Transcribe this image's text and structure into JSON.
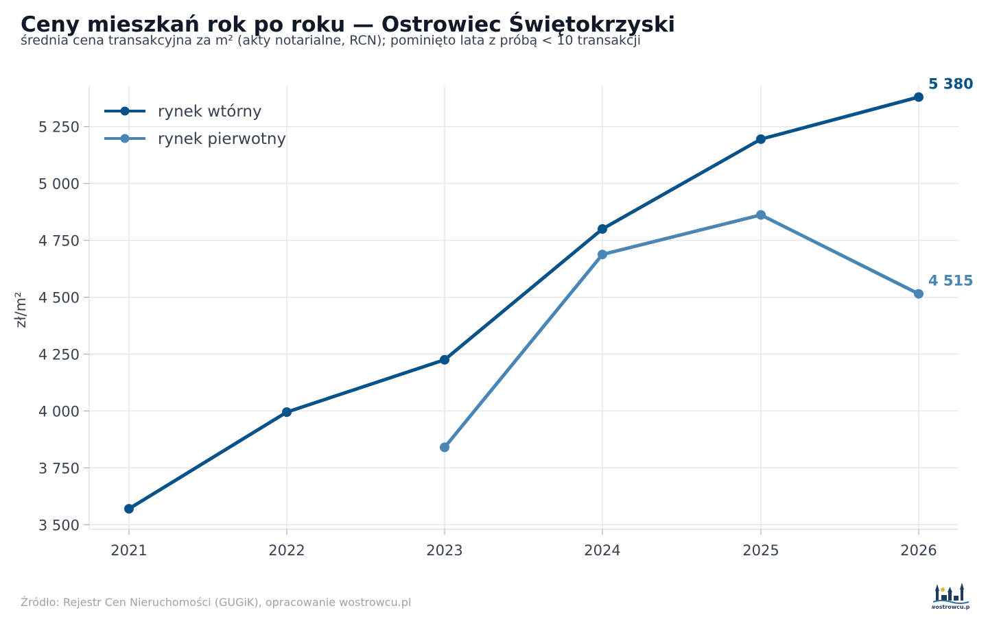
{
  "header": {
    "title": "Ceny mieszkań rok po roku — Ostrowiec Świętokrzyski",
    "subtitle": "średnia cena transakcyjna za m² (akty notarialne, RCN); pominięto lata z próbą < 10 transakcji"
  },
  "footer": {
    "source": "Źródło: Rejestr Cen Nieruchomości (GUGiK), opracowanie wostrowcu.pl",
    "logo_text": "wostrowcu.pl"
  },
  "chart_data": {
    "type": "line",
    "title": "Ceny mieszkań rok po roku — Ostrowiec Świętokrzyski",
    "subtitle": "średnia cena transakcyjna za m² (akty notarialne, RCN); pominięto lata z próbą < 10 transakcji",
    "xlabel": "",
    "ylabel": "zł/m²",
    "x": [
      2021,
      2022,
      2023,
      2024,
      2025,
      2026
    ],
    "x_tick_labels": [
      "2021",
      "2022",
      "2023",
      "2024",
      "2025",
      "2026"
    ],
    "ylim": [
      3480,
      5430
    ],
    "y_ticks": [
      3500,
      3750,
      4000,
      4250,
      4500,
      4750,
      5000,
      5250
    ],
    "y_tick_labels": [
      "3 500",
      "3 750",
      "4 000",
      "4 250",
      "4 500",
      "4 750",
      "5 000",
      "5 250"
    ],
    "grid": true,
    "legend_position": "top-left",
    "series": [
      {
        "name": "rynek wtórny",
        "color": "#08528a",
        "values": [
          3570,
          3995,
          4225,
          4800,
          5195,
          5380
        ],
        "end_label": "5 380"
      },
      {
        "name": "rynek pierwotny",
        "color": "#4a86b5",
        "values": [
          null,
          null,
          3840,
          4688,
          4862,
          4515
        ],
        "end_label": "4 515"
      }
    ]
  }
}
